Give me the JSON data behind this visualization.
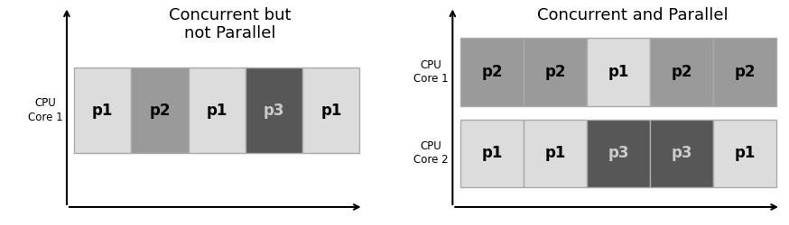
{
  "title_left": "Concurrent but\nnot Parallel",
  "title_right": "Concurrent and Parallel",
  "title_color": "#000000",
  "label_color": "#000000",
  "bg_color": "#ffffff",
  "colors": {
    "p1": "#dcdcdc",
    "p2": "#9a9a9a",
    "p3": "#575757"
  },
  "p3_text_color": "#cccccc",
  "left_row": [
    "p1",
    "p2",
    "p1",
    "p3",
    "p1"
  ],
  "right_row1": [
    "p2",
    "p2",
    "p1",
    "p2",
    "p2"
  ],
  "right_row2": [
    "p1",
    "p1",
    "p3",
    "p3",
    "p1"
  ],
  "font_size_title": 13,
  "font_size_label": 8.5,
  "font_size_box": 12
}
